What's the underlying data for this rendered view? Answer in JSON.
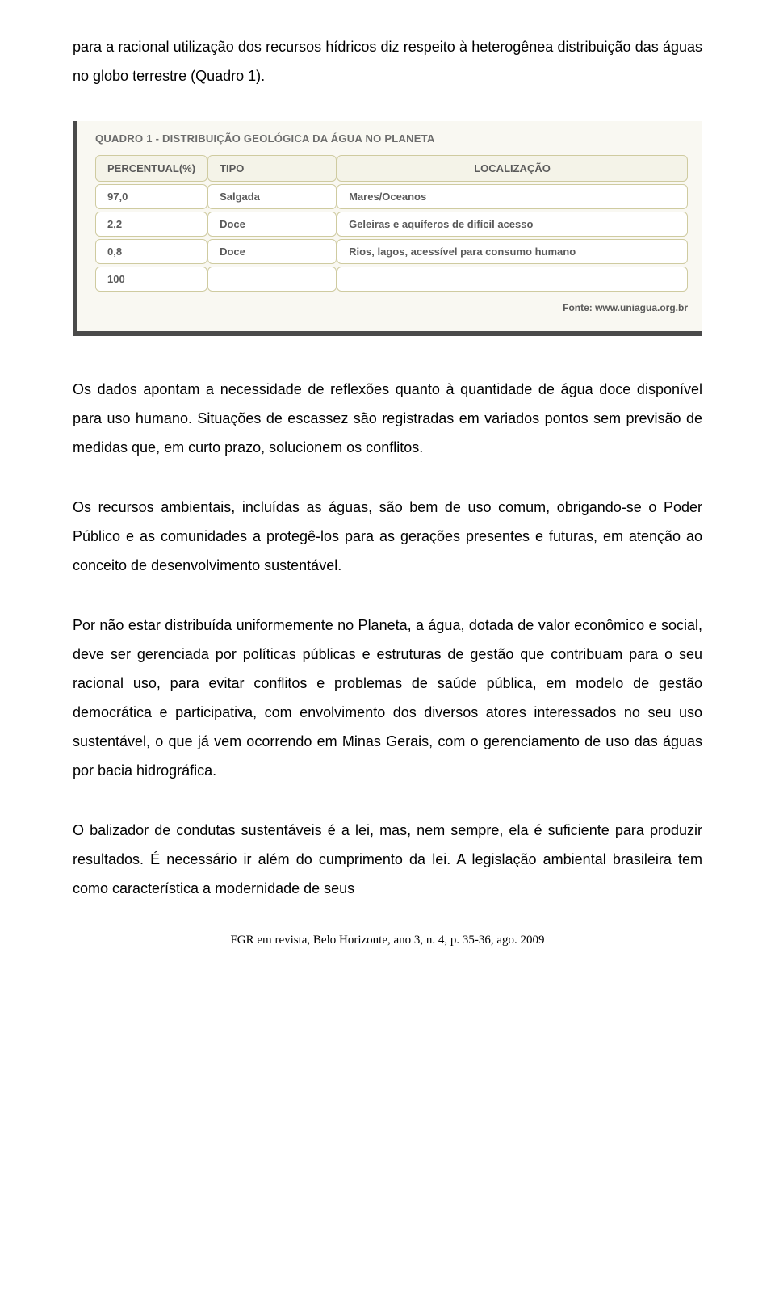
{
  "paragraphs": {
    "p1": "para a racional utilização dos recursos hídricos diz respeito à heterogênea distribuição das águas no globo terrestre (Quadro 1).",
    "p2": "Os dados apontam a necessidade de reflexões quanto à quantidade de água doce disponível para uso humano. Situações de escassez são registradas em variados pontos sem previsão de medidas que, em curto prazo, solucionem os conflitos.",
    "p3": "Os recursos ambientais, incluídas as águas, são bem de uso comum, obrigando-se o Poder Público e as comunidades a protegê-los para as gerações presentes e futuras, em atenção ao conceito de desenvolvimento sustentável.",
    "p4": "Por não estar distribuída uniformemente no Planeta, a água, dotada de valor econômico e social, deve ser gerenciada por políticas públicas e estruturas de gestão que contribuam para o seu racional uso, para evitar conflitos e problemas de saúde pública, em modelo de gestão democrática e participativa, com envolvimento dos diversos atores interessados no seu uso sustentável, o que já vem ocorrendo em Minas Gerais, com o gerenciamento de uso das águas por bacia hidrográfica.",
    "p5": "O balizador de condutas sustentáveis é a lei, mas, nem sempre, ela é suficiente para produzir resultados. É necessário ir além do cumprimento da lei. A legislação ambiental brasileira tem como característica a modernidade de seus"
  },
  "table": {
    "title": "QUADRO 1 - DISTRIBUIÇÃO GEOLÓGICA DA ÁGUA NO PLANETA",
    "headers": {
      "percentual": "PERCENTUAL(%)",
      "tipo": "TIPO",
      "localizacao": "LOCALIZAÇÃO"
    },
    "rows": [
      {
        "percentual": "97,0",
        "tipo": "Salgada",
        "localizacao": "Mares/Oceanos"
      },
      {
        "percentual": "2,2",
        "tipo": "Doce",
        "localizacao": "Geleiras e aquíferos de difícil acesso"
      },
      {
        "percentual": "0,8",
        "tipo": "Doce",
        "localizacao": "Rios, lagos, acessível para consumo humano"
      },
      {
        "percentual": "100",
        "tipo": "",
        "localizacao": ""
      }
    ],
    "fonte": "Fonte: www.uniagua.org.br",
    "style": {
      "background_color": "#f9f8f2",
      "border_color": "#cfcba0",
      "header_bg": "#f4f3e8",
      "shadow_color": "#4a4a4a",
      "text_color": "#5a5a5a",
      "title_fontsize": 13,
      "cell_fontsize": 13,
      "border_radius": 6
    }
  },
  "footer": "FGR em revista, Belo Horizonte, ano 3, n. 4, p. 35-36, ago. 2009"
}
